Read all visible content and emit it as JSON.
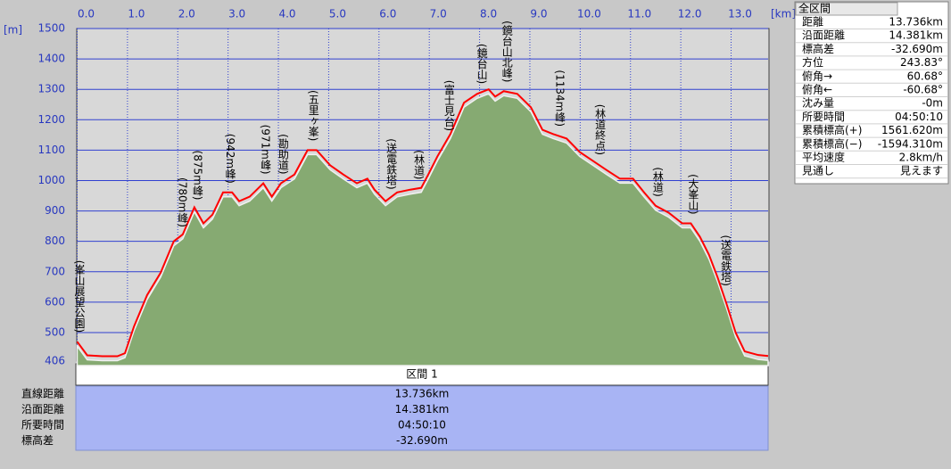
{
  "chart_data": {
    "type": "line",
    "y_unit": "[m]",
    "x_unit": "[km]",
    "x": [
      0,
      0.2,
      0.5,
      0.8,
      0.95,
      1.13,
      1.39,
      1.66,
      1.92,
      2.1,
      2.33,
      2.51,
      2.69,
      2.9,
      3.08,
      3.22,
      3.43,
      3.7,
      3.87,
      4.05,
      4.32,
      4.58,
      4.76,
      5.03,
      5.29,
      5.56,
      5.77,
      5.91,
      6.13,
      6.36,
      6.62,
      6.84,
      6.98,
      7.16,
      7.42,
      7.69,
      7.95,
      8.18,
      8.31,
      8.48,
      8.75,
      9.02,
      9.25,
      9.46,
      9.73,
      9.99,
      10.26,
      10.52,
      10.79,
      11.05,
      11.27,
      11.5,
      11.76,
      12.03,
      12.2,
      12.38,
      12.56,
      12.73,
      12.91,
      13.09,
      13.27,
      13.54,
      13.736
    ],
    "series": [
      {
        "color": "#ff0000",
        "area_color": "#86aa72",
        "values": [
          470,
          425,
          422,
          422,
          432,
          520,
          623,
          697,
          800,
          823,
          912,
          859,
          888,
          961,
          961,
          932,
          947,
          991,
          947,
          991,
          1020,
          1100,
          1100,
          1050,
          1020,
          991,
          1006,
          970,
          932,
          961,
          970,
          976,
          1020,
          1079,
          1153,
          1256,
          1285,
          1300,
          1276,
          1294,
          1285,
          1241,
          1167,
          1153,
          1138,
          1094,
          1064,
          1035,
          1006,
          1006,
          961,
          917,
          894,
          859,
          859,
          815,
          756,
          682,
          594,
          500,
          438,
          426,
          423
        ]
      }
    ],
    "xlim": [
      0,
      13.736
    ],
    "ylim": [
      406,
      1500
    ],
    "xticks": [
      {
        "value": 0,
        "label": "0.0"
      },
      {
        "value": 1,
        "label": "1.0"
      },
      {
        "value": 2,
        "label": "2.0"
      },
      {
        "value": 3,
        "label": "3.0"
      },
      {
        "value": 4,
        "label": "4.0"
      },
      {
        "value": 5,
        "label": "5.0"
      },
      {
        "value": 6,
        "label": "6.0"
      },
      {
        "value": 7,
        "label": "7.0"
      },
      {
        "value": 8,
        "label": "8.0"
      },
      {
        "value": 9,
        "label": "9.0"
      },
      {
        "value": 10,
        "label": "10.0"
      },
      {
        "value": 11,
        "label": "11.0"
      },
      {
        "value": 12,
        "label": "12.0"
      },
      {
        "value": 13,
        "label": "13.0"
      }
    ],
    "yticks": [
      406,
      500,
      600,
      700,
      800,
      900,
      1000,
      1100,
      1200,
      1300,
      1400,
      1500
    ],
    "grid": true,
    "annotations": [
      {
        "text": "(峯山展望公園)",
        "x": 0
      },
      {
        "text": "(780m峰)",
        "x": 2.05
      },
      {
        "text": "(875m峰)",
        "x": 2.35
      },
      {
        "text": "(942m峰)",
        "x": 3.0
      },
      {
        "text": "(971m峰)",
        "x": 3.7
      },
      {
        "text": "(勘助道)",
        "x": 4.05
      },
      {
        "text": "(五里ヶ峯)",
        "x": 4.65
      },
      {
        "text": "(送電鉄塔)",
        "x": 6.2
      },
      {
        "text": "(林道)",
        "x": 6.75
      },
      {
        "text": "(富士見台)",
        "x": 7.35
      },
      {
        "text": "(鏡台山)",
        "x": 8.0
      },
      {
        "text": "(鏡台山北峰)",
        "x": 8.5
      },
      {
        "text": "(1134m峰)",
        "x": 9.55
      },
      {
        "text": "(林道終点)",
        "x": 10.35
      },
      {
        "text": "(林道)",
        "x": 11.5
      },
      {
        "text": "(大峯山)",
        "x": 12.2
      },
      {
        "text": "(送電鉄塔)",
        "x": 12.85
      }
    ]
  },
  "section_table": {
    "header": "区間 1",
    "rows": [
      [
        "直線距離",
        "13.736km"
      ],
      [
        "沿面距離",
        "14.381km"
      ],
      [
        "所要時間",
        "04:50:10"
      ],
      [
        "標高差",
        "-32.690m"
      ]
    ]
  },
  "summary_panel": {
    "title": "全区間",
    "rows": [
      [
        "距離",
        "13.736km"
      ],
      [
        "沿面距離",
        "14.381km"
      ],
      [
        "標高差",
        "-32.690m"
      ],
      [
        "方位",
        "243.83°"
      ],
      [
        "俯角→",
        "60.68°"
      ],
      [
        "俯角←",
        "-60.68°"
      ],
      [
        "沈み量",
        "-0m"
      ],
      [
        "所要時間",
        "04:50:10"
      ],
      [
        "累積標高(+)",
        "1561.620m"
      ],
      [
        "累積標高(−)",
        "-1594.310m"
      ],
      [
        "平均速度",
        "2.8km/h"
      ],
      [
        "見通し",
        "見えます"
      ]
    ]
  }
}
